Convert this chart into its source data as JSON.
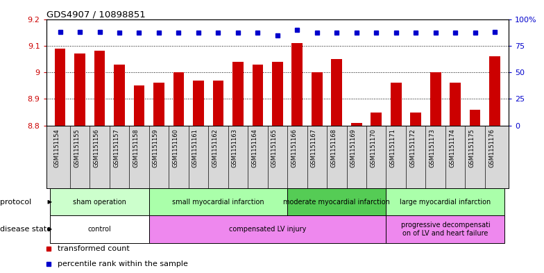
{
  "title": "GDS4907 / 10898851",
  "samples": [
    "GSM1151154",
    "GSM1151155",
    "GSM1151156",
    "GSM1151157",
    "GSM1151158",
    "GSM1151159",
    "GSM1151160",
    "GSM1151161",
    "GSM1151162",
    "GSM1151163",
    "GSM1151164",
    "GSM1151165",
    "GSM1151166",
    "GSM1151167",
    "GSM1151168",
    "GSM1151169",
    "GSM1151170",
    "GSM1151171",
    "GSM1151172",
    "GSM1151173",
    "GSM1151174",
    "GSM1151175",
    "GSM1151176"
  ],
  "transformed_count": [
    9.09,
    9.07,
    9.08,
    9.03,
    8.95,
    8.96,
    9.0,
    8.97,
    8.97,
    9.04,
    9.03,
    9.04,
    9.11,
    9.0,
    9.05,
    8.81,
    8.85,
    8.96,
    8.85,
    9.0,
    8.96,
    8.86,
    9.06
  ],
  "percentile_rank": [
    88,
    88,
    88,
    87,
    87,
    87,
    87,
    87,
    87,
    87,
    87,
    85,
    90,
    87,
    87,
    87,
    87,
    87,
    87,
    87,
    87,
    87,
    88
  ],
  "ylim_left": [
    8.8,
    9.2
  ],
  "ylim_right": [
    0,
    100
  ],
  "bar_color": "#cc0000",
  "dot_color": "#0000cc",
  "yticks_left": [
    8.8,
    8.9,
    9.0,
    9.1,
    9.2
  ],
  "yticks_left_labels": [
    "8.8",
    "8.9",
    "9",
    "9.1",
    "9.2"
  ],
  "yticks_right": [
    0,
    25,
    50,
    75,
    100
  ],
  "yticks_right_labels": [
    "0",
    "25",
    "50",
    "75",
    "100%"
  ],
  "hgrid_values": [
    8.9,
    9.0,
    9.1
  ],
  "protocol_groups": [
    {
      "label": "sham operation",
      "start": 0,
      "end": 5,
      "color": "#ccffcc"
    },
    {
      "label": "small myocardial infarction",
      "start": 5,
      "end": 12,
      "color": "#aaffaa"
    },
    {
      "label": "moderate myocardial infarction",
      "start": 12,
      "end": 17,
      "color": "#55cc55"
    },
    {
      "label": "large myocardial infarction",
      "start": 17,
      "end": 23,
      "color": "#aaffaa"
    }
  ],
  "disease_groups": [
    {
      "label": "control",
      "start": 0,
      "end": 5,
      "color": "#ffffff"
    },
    {
      "label": "compensated LV injury",
      "start": 5,
      "end": 17,
      "color": "#ee88ee"
    },
    {
      "label": "progressive decompensati\non of LV and heart failure",
      "start": 17,
      "end": 23,
      "color": "#ee88ee"
    }
  ],
  "legend_tc_label": "transformed count",
  "legend_pr_label": "percentile rank within the sample",
  "protocol_label": "protocol",
  "disease_label": "disease state",
  "bar_width": 0.55,
  "sample_label_fontsize": 6,
  "band_fontsize": 7,
  "legend_fontsize": 8
}
